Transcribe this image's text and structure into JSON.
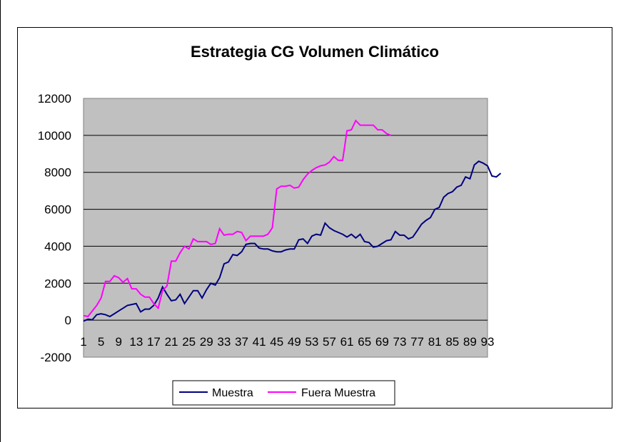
{
  "chart_data": {
    "type": "line",
    "title": "Estrategia CG Volumen Climático",
    "xlabel": "",
    "ylabel": "",
    "ylim": [
      -2000,
      12000
    ],
    "yticks": [
      -2000,
      0,
      2000,
      4000,
      6000,
      8000,
      10000,
      12000
    ],
    "x_tick_labels": [
      "1",
      "5",
      "9",
      "13",
      "17",
      "21",
      "25",
      "29",
      "33",
      "37",
      "41",
      "45",
      "49",
      "53",
      "57",
      "61",
      "65",
      "69",
      "73",
      "77",
      "81",
      "85",
      "89",
      "93"
    ],
    "grid": true,
    "legend_position": "bottom",
    "plot_background": "#c0c0c0",
    "series": [
      {
        "name": "Muestra",
        "color": "#000080",
        "values": [
          -50,
          50,
          20,
          300,
          350,
          300,
          200,
          350,
          500,
          650,
          800,
          850,
          900,
          450,
          600,
          600,
          800,
          1200,
          1800,
          1400,
          1050,
          1100,
          1400,
          900,
          1250,
          1600,
          1600,
          1200,
          1650,
          2000,
          1900,
          2300,
          3050,
          3150,
          3550,
          3500,
          3700,
          4100,
          4150,
          4150,
          3900,
          3850,
          3850,
          3750,
          3700,
          3700,
          3800,
          3850,
          3850,
          4350,
          4400,
          4150,
          4550,
          4650,
          4600,
          5250,
          5000,
          4850,
          4750,
          4650,
          4500,
          4650,
          4450,
          4650,
          4250,
          4200,
          3950,
          4000,
          4150,
          4300,
          4350,
          4800,
          4600,
          4600,
          4400,
          4500,
          4850,
          5200,
          5400,
          5550,
          6000,
          6100,
          6650,
          6850,
          6950,
          7200,
          7300,
          7750,
          7650,
          8400,
          8600,
          8500,
          8350,
          7800,
          7750,
          7950
        ]
      },
      {
        "name": "Fuera Muestra",
        "color": "#ff00ff",
        "values": [
          250,
          200,
          500,
          800,
          1200,
          2100,
          2100,
          2400,
          2300,
          2050,
          2250,
          1700,
          1700,
          1400,
          1250,
          1250,
          900,
          650,
          1600,
          1850,
          3200,
          3200,
          3650,
          4000,
          3850,
          4400,
          4250,
          4250,
          4250,
          4100,
          4150,
          4950,
          4600,
          4650,
          4650,
          4800,
          4750,
          4300,
          4550,
          4550,
          4550,
          4550,
          4650,
          5000,
          7100,
          7250,
          7250,
          7300,
          7150,
          7200,
          7600,
          7900,
          8100,
          8250,
          8350,
          8400,
          8550,
          8850,
          8650,
          8650,
          10250,
          10300,
          10800,
          10550,
          10550,
          10550,
          10550,
          10300,
          10300,
          10100,
          10000
        ]
      }
    ]
  }
}
